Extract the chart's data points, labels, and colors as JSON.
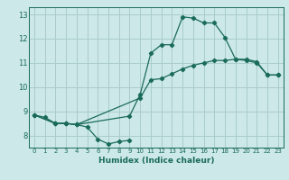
{
  "xlabel": "Humidex (Indice chaleur)",
  "bg_color": "#cce8e8",
  "grid_color": "#aacccc",
  "line_color": "#1a6b5a",
  "xlim": [
    -0.5,
    23.5
  ],
  "ylim": [
    7.5,
    13.3
  ],
  "xticks": [
    0,
    1,
    2,
    3,
    4,
    5,
    6,
    7,
    8,
    9,
    10,
    11,
    12,
    13,
    14,
    15,
    16,
    17,
    18,
    19,
    20,
    21,
    22,
    23
  ],
  "yticks": [
    8,
    9,
    10,
    11,
    12,
    13
  ],
  "line1_dip": {
    "x": [
      0,
      1,
      2,
      3,
      4,
      5,
      6,
      7,
      8,
      9
    ],
    "y": [
      8.85,
      8.75,
      8.5,
      8.5,
      8.45,
      8.35,
      7.85,
      7.65,
      7.75,
      7.8
    ]
  },
  "line2_gradual": {
    "x": [
      0,
      2,
      3,
      4,
      10,
      11,
      12,
      13,
      14,
      15,
      16,
      17,
      18,
      19,
      20,
      21,
      22,
      23
    ],
    "y": [
      8.85,
      8.5,
      8.5,
      8.45,
      9.55,
      10.3,
      10.35,
      10.55,
      10.75,
      10.9,
      11.0,
      11.1,
      11.1,
      11.15,
      11.1,
      11.0,
      10.5,
      10.5
    ]
  },
  "line3_peak": {
    "x": [
      0,
      2,
      3,
      4,
      9,
      10,
      11,
      12,
      13,
      14,
      15,
      16,
      17,
      18,
      19,
      20,
      21,
      22,
      23
    ],
    "y": [
      8.85,
      8.5,
      8.5,
      8.45,
      8.8,
      9.7,
      11.4,
      11.75,
      11.75,
      12.9,
      12.85,
      12.65,
      12.65,
      12.05,
      11.15,
      11.15,
      11.05,
      10.5,
      10.5
    ]
  }
}
